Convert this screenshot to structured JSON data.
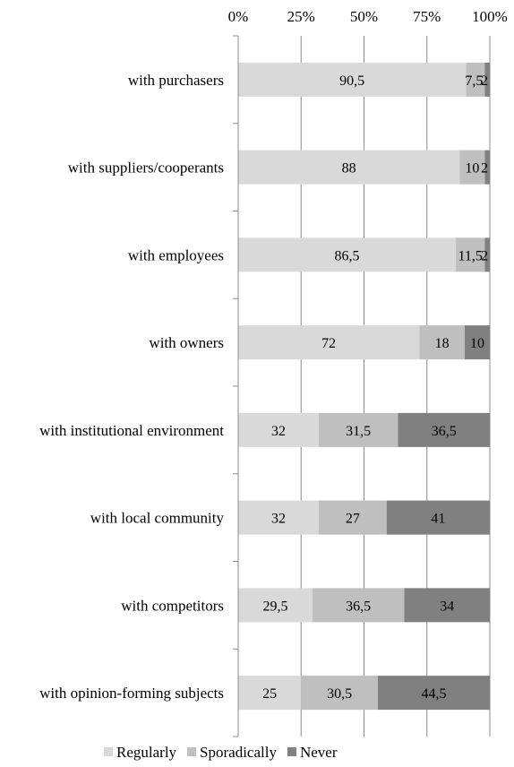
{
  "chart_data": {
    "type": "bar",
    "orientation": "horizontal",
    "stacked": "percent",
    "title": "",
    "xlabel": "",
    "ylabel": "",
    "xlim": [
      0,
      100
    ],
    "x_ticks": [
      "0%",
      "25%",
      "50%",
      "75%",
      "100%"
    ],
    "x_axis_position": "top",
    "grid": "vertical",
    "legend_position": "bottom",
    "categories": [
      "with purchasers",
      "with suppliers/cooperants",
      "with employees",
      "with owners",
      "with institutional environment",
      "with local community",
      "with competitors",
      "with opinion-forming subjects"
    ],
    "series": [
      {
        "name": "Regularly",
        "color": "#d9d9d9",
        "values": [
          90.5,
          88,
          86.5,
          72,
          32,
          32,
          29.5,
          25
        ],
        "labels": [
          "90,5",
          "88",
          "86,5",
          "72",
          "32",
          "32",
          "29,5",
          "25"
        ]
      },
      {
        "name": "Sporadically",
        "color": "#bfbfbf",
        "values": [
          7.5,
          10,
          11.5,
          18,
          31.5,
          27,
          36.5,
          30.5
        ],
        "labels": [
          "7,5",
          "10",
          "11,5",
          "18",
          "31,5",
          "27",
          "36,5",
          "30,5"
        ]
      },
      {
        "name": "Never",
        "color": "#808080",
        "values": [
          2,
          2,
          2,
          10,
          36.5,
          41,
          34,
          44.5
        ],
        "labels": [
          "2",
          "2",
          "2",
          "10",
          "36,5",
          "41",
          "34",
          "44,5"
        ]
      }
    ]
  }
}
